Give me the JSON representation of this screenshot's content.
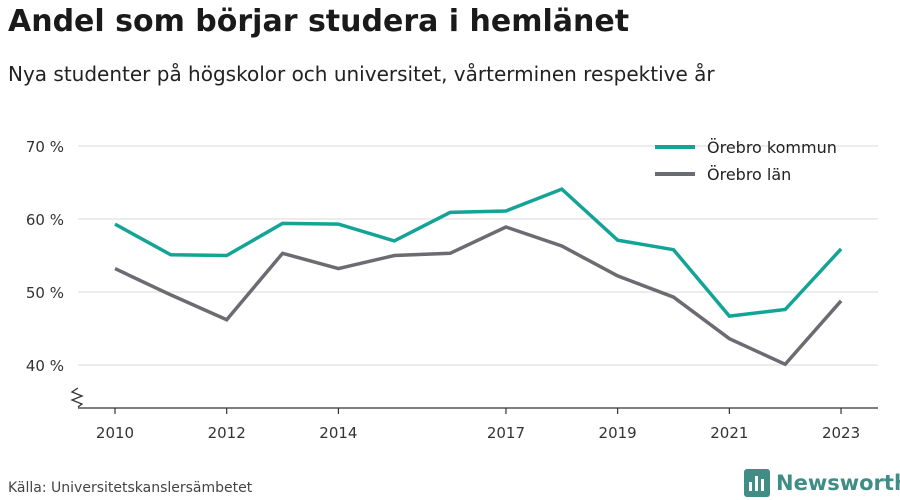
{
  "header": {
    "title": "Andel som börjar studera i hemlänet",
    "subtitle": "Nya studenter på högskolor och universitet, vårterminen respektive år"
  },
  "footer": {
    "source": "Källa: Universitetskanslersämbetet",
    "brand": "Newsworthy",
    "brand_color": "#3f8d84"
  },
  "chart_data": {
    "type": "line",
    "x": [
      2010,
      2011,
      2012,
      2013,
      2014,
      2015,
      2016,
      2017,
      2018,
      2019,
      2020,
      2021,
      2022,
      2023
    ],
    "x_tick_labels": [
      "2010",
      "2012",
      "2014",
      "2017",
      "2019",
      "2021",
      "2023"
    ],
    "y_ticks": [
      40,
      50,
      60,
      70
    ],
    "y_tick_labels": [
      "40 %",
      "50 %",
      "60 %",
      "70 %"
    ],
    "ylim": [
      34,
      70
    ],
    "grid": true,
    "legend_position": "top-right",
    "series": [
      {
        "name": "Örebro kommun",
        "color": "#13a496",
        "values": [
          59.3,
          55.1,
          55.0,
          59.4,
          59.3,
          57.0,
          60.9,
          61.1,
          64.1,
          57.1,
          55.8,
          46.7,
          47.6,
          55.9
        ]
      },
      {
        "name": "Örebro län",
        "color": "#6b6b72",
        "values": [
          53.2,
          49.6,
          46.2,
          55.3,
          53.2,
          55.0,
          55.3,
          58.9,
          56.3,
          52.2,
          49.3,
          43.6,
          40.1,
          48.8
        ]
      }
    ]
  }
}
